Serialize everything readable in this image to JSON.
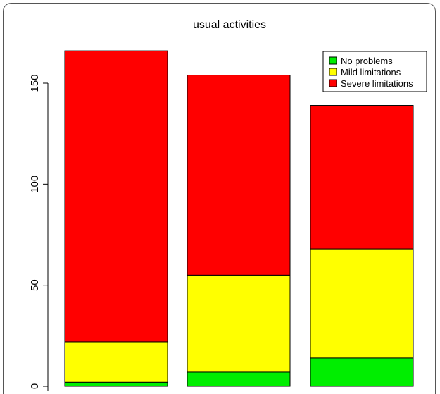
{
  "chart_data": {
    "type": "bar",
    "stacked": true,
    "title": "usual activities",
    "xlabel": "",
    "ylabel": "",
    "categories": [
      "",
      "",
      ""
    ],
    "series": [
      {
        "name": "No problems",
        "color": "#00ee00",
        "values": [
          2,
          7,
          14
        ]
      },
      {
        "name": "Mild limitations",
        "color": "#ffff00",
        "values": [
          20,
          48,
          54
        ]
      },
      {
        "name": "Severe limitations",
        "color": "#ff0000",
        "values": [
          144,
          99,
          71
        ]
      }
    ],
    "ylim": [
      0,
      175
    ],
    "yticks": [
      0,
      50,
      100,
      150
    ],
    "grid": false,
    "legend_position": "top-right"
  }
}
